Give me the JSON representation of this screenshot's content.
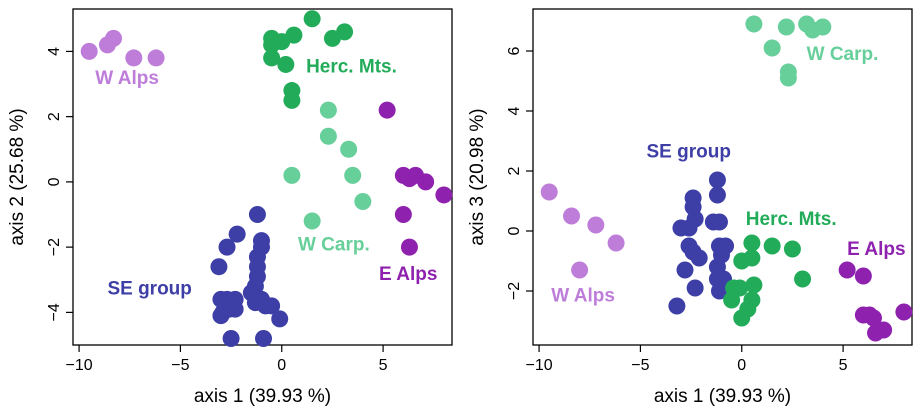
{
  "chart_data": [
    {
      "type": "scatter",
      "xlabel": "axis 1 (39.93 %)",
      "ylabel": "axis 2 (25.68 %)",
      "xlim": [
        -10.3,
        8.4
      ],
      "ylim": [
        -5.0,
        5.3
      ],
      "xticks": [
        -10,
        -5,
        0,
        5
      ],
      "yticks": [
        -4,
        -2,
        0,
        2,
        4
      ],
      "series": [
        {
          "name": "W Alps",
          "color": "#bd7dd9",
          "points": [
            [
              -9.5,
              4.0
            ],
            [
              -8.6,
              4.2
            ],
            [
              -8.3,
              4.4
            ],
            [
              -7.3,
              3.8
            ],
            [
              -6.2,
              3.8
            ]
          ]
        },
        {
          "name": "Herc. Mts.",
          "color": "#22ac5a",
          "points": [
            [
              -0.5,
              4.4
            ],
            [
              -0.5,
              4.2
            ],
            [
              0.0,
              4.3
            ],
            [
              0.6,
              4.5
            ],
            [
              1.5,
              5.0
            ],
            [
              2.5,
              4.4
            ],
            [
              3.1,
              4.6
            ],
            [
              -0.5,
              3.8
            ],
            [
              0.2,
              3.6
            ],
            [
              0.5,
              2.8
            ],
            [
              0.5,
              2.5
            ]
          ]
        },
        {
          "name": "W Carp.",
          "color": "#66cf9a",
          "points": [
            [
              2.3,
              2.2
            ],
            [
              2.3,
              1.4
            ],
            [
              3.3,
              1.0
            ],
            [
              3.5,
              0.2
            ],
            [
              4.0,
              -0.6
            ],
            [
              0.5,
              0.2
            ],
            [
              1.5,
              -1.2
            ]
          ]
        },
        {
          "name": "E Alps",
          "color": "#8e22ae",
          "points": [
            [
              5.2,
              2.2
            ],
            [
              6.0,
              0.2
            ],
            [
              6.3,
              0.1
            ],
            [
              6.6,
              0.2
            ],
            [
              7.1,
              0.0
            ],
            [
              8.0,
              -0.4
            ],
            [
              6.0,
              -1.0
            ],
            [
              6.3,
              -2.0
            ]
          ]
        },
        {
          "name": "SE group",
          "color": "#3d3ea6",
          "points": [
            [
              -1.2,
              -1.0
            ],
            [
              -2.2,
              -1.6
            ],
            [
              -2.7,
              -2.0
            ],
            [
              -1.0,
              -1.8
            ],
            [
              -1.0,
              -2.0
            ],
            [
              -1.2,
              -2.3
            ],
            [
              -1.2,
              -2.6
            ],
            [
              -3.1,
              -2.6
            ],
            [
              -1.2,
              -2.9
            ],
            [
              -1.3,
              -3.2
            ],
            [
              -3.0,
              -3.6
            ],
            [
              -2.7,
              -3.6
            ],
            [
              -2.3,
              -3.6
            ],
            [
              -1.5,
              -3.4
            ],
            [
              -1.0,
              -3.6
            ],
            [
              -1.3,
              -3.7
            ],
            [
              -0.8,
              -3.8
            ],
            [
              -2.9,
              -4.0
            ],
            [
              -2.6,
              -3.9
            ],
            [
              -2.3,
              -3.9
            ],
            [
              -0.5,
              -3.8
            ],
            [
              -0.1,
              -4.2
            ],
            [
              -3.0,
              -4.1
            ],
            [
              -2.5,
              -4.8
            ],
            [
              -0.9,
              -4.8
            ]
          ]
        }
      ],
      "annotations": [
        {
          "text": "W Alps",
          "x": -9.2,
          "y": 3.0,
          "color": "#bd7dd9"
        },
        {
          "text": "Herc. Mts.",
          "x": 1.2,
          "y": 3.35,
          "color": "#22ac5a"
        },
        {
          "text": "W Carp.",
          "x": 0.8,
          "y": -2.1,
          "color": "#66cf9a"
        },
        {
          "text": "E Alps",
          "x": 4.8,
          "y": -3.0,
          "color": "#8e22ae"
        },
        {
          "text": "SE group",
          "x": -8.6,
          "y": -3.45,
          "color": "#3d3ea6"
        }
      ]
    },
    {
      "type": "scatter",
      "xlabel": "axis 1 (39.93 %)",
      "ylabel": "axis 3 (20.98 %)",
      "xlim": [
        -10.3,
        8.4
      ],
      "ylim": [
        -3.8,
        7.4
      ],
      "xticks": [
        -10,
        -5,
        0,
        5
      ],
      "yticks": [
        -2,
        0,
        2,
        4,
        6
      ],
      "series": [
        {
          "name": "W Carp.",
          "color": "#66cf9a",
          "points": [
            [
              0.6,
              6.9
            ],
            [
              2.2,
              6.8
            ],
            [
              3.2,
              6.9
            ],
            [
              3.5,
              6.7
            ],
            [
              4.0,
              6.8
            ],
            [
              1.5,
              6.1
            ],
            [
              2.3,
              5.3
            ],
            [
              2.3,
              5.1
            ]
          ]
        },
        {
          "name": "W Alps",
          "color": "#bd7dd9",
          "points": [
            [
              -9.5,
              1.3
            ],
            [
              -8.4,
              0.5
            ],
            [
              -7.2,
              0.2
            ],
            [
              -6.2,
              -0.4
            ],
            [
              -8.0,
              -1.3
            ]
          ]
        },
        {
          "name": "SE group",
          "color": "#3d3ea6",
          "points": [
            [
              -2.4,
              1.1
            ],
            [
              -2.4,
              0.8
            ],
            [
              -2.3,
              0.4
            ],
            [
              -1.2,
              1.7
            ],
            [
              -1.2,
              1.2
            ],
            [
              -1.4,
              0.3
            ],
            [
              -1.1,
              0.3
            ],
            [
              -2.6,
              0.1
            ],
            [
              -3.0,
              0.1
            ],
            [
              -2.6,
              -0.5
            ],
            [
              -2.4,
              -0.7
            ],
            [
              -2.1,
              -0.9
            ],
            [
              -1.1,
              -0.5
            ],
            [
              -0.8,
              -0.5
            ],
            [
              -1.0,
              -0.8
            ],
            [
              -1.2,
              -1.2
            ],
            [
              -2.8,
              -1.3
            ],
            [
              -1.2,
              -1.6
            ],
            [
              -0.9,
              -1.6
            ],
            [
              -2.3,
              -1.9
            ],
            [
              -1.1,
              -2.0
            ],
            [
              -3.2,
              -2.5
            ]
          ]
        },
        {
          "name": "Herc. Mts.",
          "color": "#22ac5a",
          "points": [
            [
              0.5,
              -0.4
            ],
            [
              1.5,
              -0.5
            ],
            [
              2.5,
              -0.6
            ],
            [
              0.0,
              -1.0
            ],
            [
              0.5,
              -0.9
            ],
            [
              -0.4,
              -1.9
            ],
            [
              -0.1,
              -1.9
            ],
            [
              0.6,
              -1.8
            ],
            [
              3.0,
              -1.6
            ],
            [
              -0.5,
              -2.3
            ],
            [
              0.5,
              -2.3
            ],
            [
              0.3,
              -2.6
            ],
            [
              0.0,
              -2.9
            ]
          ]
        },
        {
          "name": "E Alps",
          "color": "#8e22ae",
          "points": [
            [
              5.2,
              -1.3
            ],
            [
              6.0,
              -1.5
            ],
            [
              6.0,
              -2.8
            ],
            [
              6.3,
              -2.8
            ],
            [
              6.5,
              -2.9
            ],
            [
              8.0,
              -2.7
            ],
            [
              6.6,
              -3.4
            ],
            [
              7.0,
              -3.3
            ]
          ]
        }
      ],
      "annotations": [
        {
          "text": "W Carp.",
          "x": 3.2,
          "y": 5.7,
          "color": "#66cf9a"
        },
        {
          "text": "SE group",
          "x": -4.7,
          "y": 2.45,
          "color": "#3d3ea6"
        },
        {
          "text": "Herc. Mts.",
          "x": 0.2,
          "y": 0.2,
          "color": "#22ac5a"
        },
        {
          "text": "E Alps",
          "x": 5.2,
          "y": -0.8,
          "color": "#8e22ae"
        },
        {
          "text": "W Alps",
          "x": -9.4,
          "y": -2.35,
          "color": "#bd7dd9"
        }
      ]
    }
  ]
}
